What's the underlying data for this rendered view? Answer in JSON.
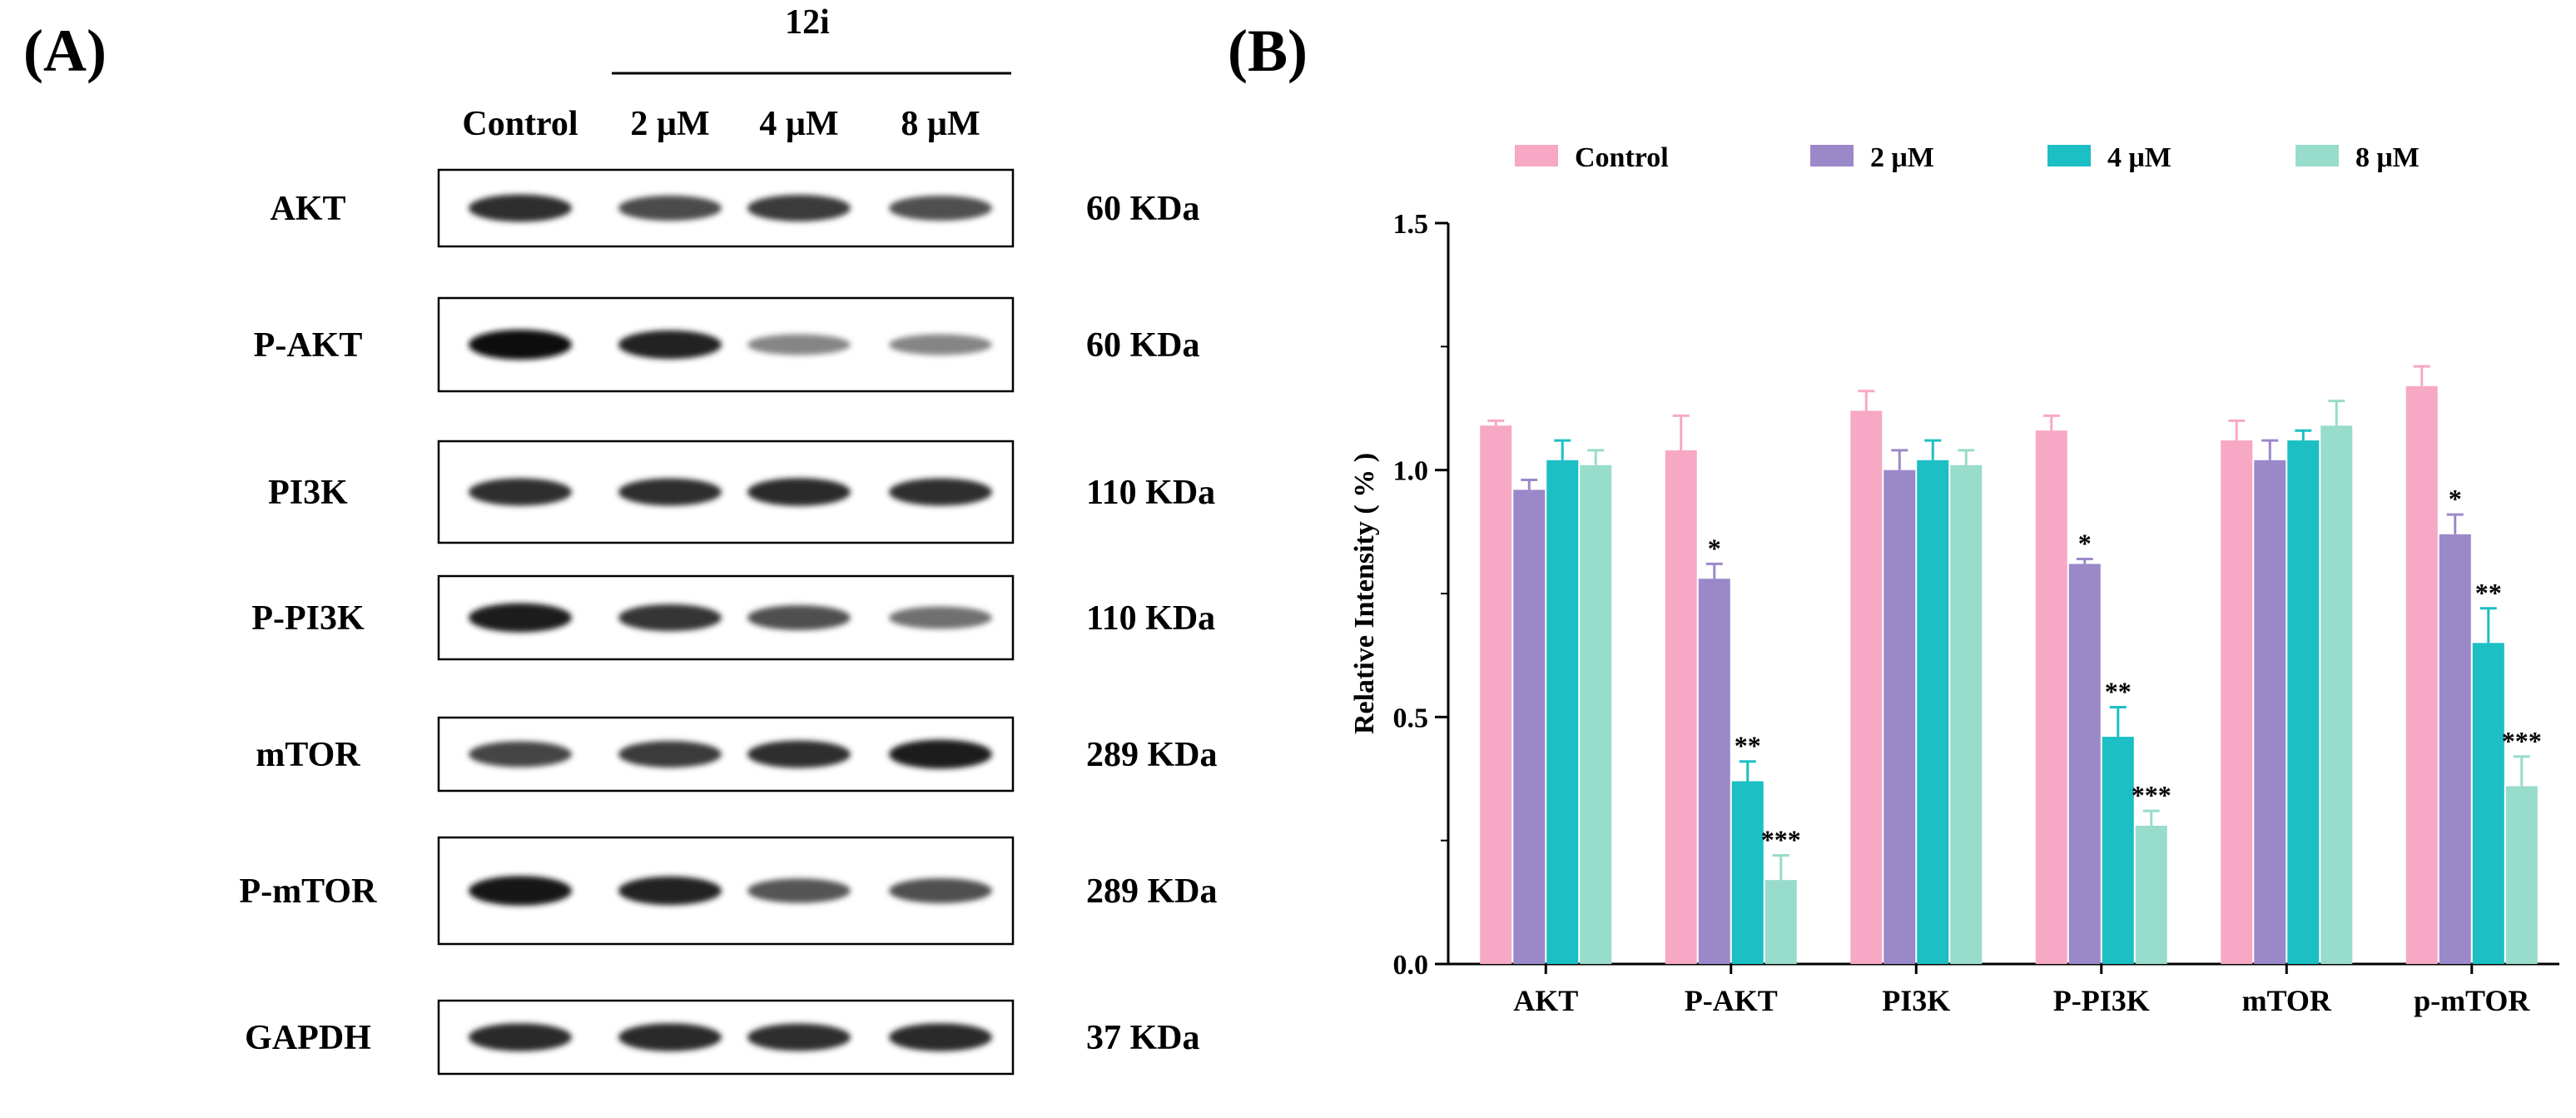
{
  "panel_a": {
    "label": "(A)",
    "treatment_label": "12i",
    "lanes": [
      "Control",
      "2 µM",
      "4 µM",
      "8 µM"
    ],
    "blots": [
      {
        "protein": "AKT",
        "size": "60 KDa",
        "intensity": [
          0.85,
          0.72,
          0.8,
          0.7
        ]
      },
      {
        "protein": "P-AKT",
        "size": "60 KDa",
        "intensity": [
          1.0,
          0.92,
          0.45,
          0.45
        ]
      },
      {
        "protein": "PI3K",
        "size": "110 KDa",
        "intensity": [
          0.85,
          0.85,
          0.88,
          0.85
        ]
      },
      {
        "protein": "P-PI3K",
        "size": "110 KDa",
        "intensity": [
          0.95,
          0.82,
          0.7,
          0.55
        ]
      },
      {
        "protein": "mTOR",
        "size": "289 KDa",
        "intensity": [
          0.75,
          0.8,
          0.85,
          0.95
        ]
      },
      {
        "protein": "P-mTOR",
        "size": "289 KDa",
        "intensity": [
          0.98,
          0.92,
          0.68,
          0.7
        ]
      },
      {
        "protein": "GAPDH",
        "size": "37 KDa",
        "intensity": [
          0.88,
          0.88,
          0.85,
          0.88
        ]
      }
    ]
  },
  "chart_data": {
    "type": "bar",
    "panel_label": "(B)",
    "title": "",
    "xlabel": "",
    "ylabel": "Relative Intensity ( % )",
    "ylim": [
      0,
      1.5
    ],
    "yticks": [
      "0.0",
      "0.5",
      "1.0",
      "1.5"
    ],
    "categories": [
      "AKT",
      "P-AKT",
      "PI3K",
      "P-PI3K",
      "mTOR",
      "p-mTOR"
    ],
    "legend_position": "top",
    "series": [
      {
        "name": "Control",
        "color": "#f7a8c4",
        "values": [
          1.09,
          1.04,
          1.12,
          1.08,
          1.06,
          1.17
        ],
        "errors": [
          0.01,
          0.07,
          0.04,
          0.03,
          0.04,
          0.04
        ],
        "significance": [
          "",
          "",
          "",
          "",
          "",
          ""
        ]
      },
      {
        "name": "2 μM",
        "color": "#9b88c9",
        "values": [
          0.96,
          0.78,
          1.0,
          0.81,
          1.02,
          0.87
        ],
        "errors": [
          0.02,
          0.03,
          0.04,
          0.01,
          0.04,
          0.04
        ],
        "significance": [
          "",
          "*",
          "",
          "*",
          "",
          "*"
        ]
      },
      {
        "name": "4 μM",
        "color": "#1bbfc4",
        "values": [
          1.02,
          0.37,
          1.02,
          0.46,
          1.06,
          0.65
        ],
        "errors": [
          0.04,
          0.04,
          0.04,
          0.06,
          0.02,
          0.07
        ],
        "significance": [
          "",
          "**",
          "",
          "**",
          "",
          "**"
        ]
      },
      {
        "name": "8 μM",
        "color": "#98dccb",
        "values": [
          1.01,
          0.17,
          1.01,
          0.28,
          1.09,
          0.36
        ],
        "errors": [
          0.03,
          0.05,
          0.03,
          0.03,
          0.05,
          0.06
        ],
        "significance": [
          "",
          "***",
          "",
          "***",
          "",
          "***"
        ]
      }
    ]
  }
}
